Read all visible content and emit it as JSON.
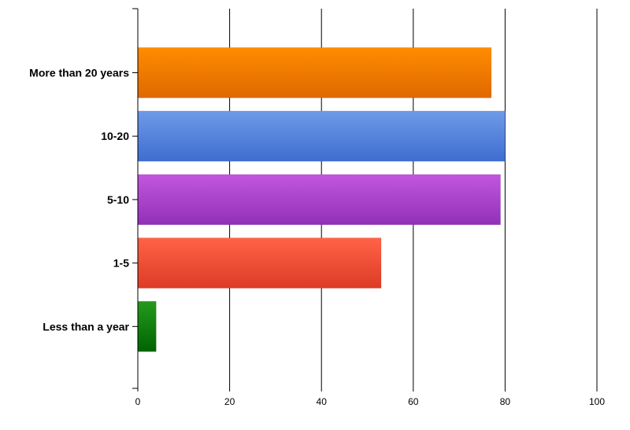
{
  "chart_data": {
    "type": "bar",
    "orientation": "horizontal",
    "categories": [
      "More than 20 years",
      "10-20",
      "5-10",
      "1-5",
      "Less than a year"
    ],
    "values": [
      77,
      80,
      79,
      53,
      4
    ],
    "colors": [
      [
        "#ff8c00",
        "#e06800"
      ],
      [
        "#6f9ae8",
        "#3f6dd0"
      ],
      [
        "#c257dd",
        "#9230b8"
      ],
      [
        "#ff6347",
        "#dd3b25"
      ],
      [
        "#249a1e",
        "#006400"
      ]
    ],
    "xlim": [
      0,
      100
    ],
    "xticks": [
      0,
      20,
      40,
      60,
      80,
      100
    ],
    "grid": true,
    "title": "",
    "xlabel": "",
    "ylabel": ""
  }
}
